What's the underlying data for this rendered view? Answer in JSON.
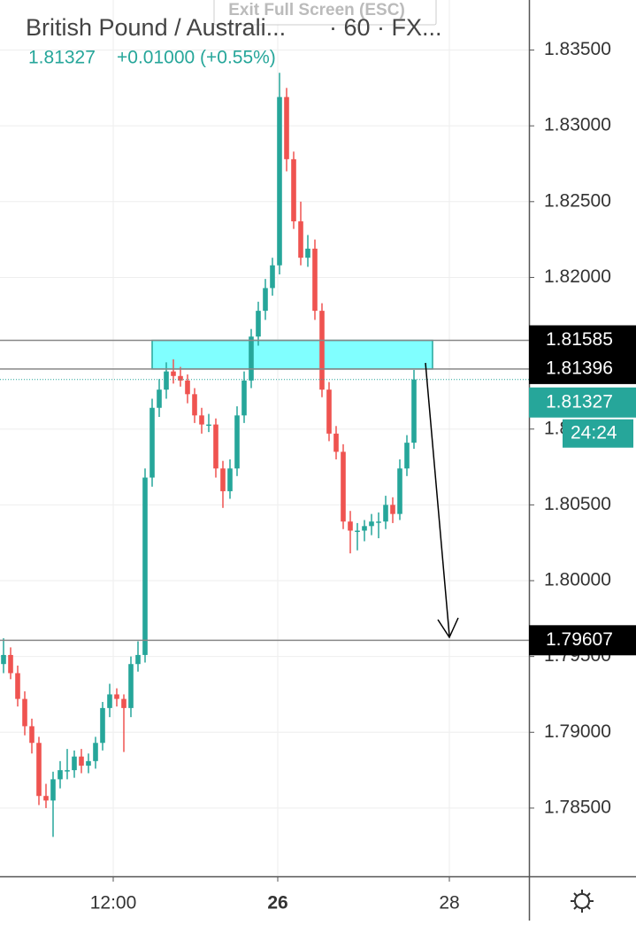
{
  "header": {
    "title": "British Pound / Australi...",
    "interval": "· 60 · FX...",
    "price": "1.81327",
    "change": "+0.01000 (+0.55%)",
    "button": "Exit Full Screen (ESC)"
  },
  "chart_data": {
    "type": "candlestick",
    "categories": [
      null,
      null,
      null,
      null,
      null,
      null,
      null,
      null,
      null,
      null,
      null,
      null,
      null,
      null,
      null,
      null,
      null,
      null,
      null,
      null,
      null,
      null,
      null,
      null,
      null,
      null,
      null,
      null,
      null,
      null,
      null,
      null,
      null,
      null,
      null,
      null,
      null,
      null,
      null,
      null,
      null,
      null,
      null,
      null,
      null,
      null,
      null,
      null,
      null,
      null,
      null,
      null,
      null,
      null,
      null,
      null,
      null,
      null,
      null
    ],
    "open": [
      1.7945,
      1.7951,
      1.7939,
      1.7922,
      1.7904,
      1.7893,
      1.7858,
      1.7855,
      1.7869,
      1.7875,
      1.7875,
      1.7884,
      1.7878,
      1.7881,
      1.7893,
      1.7916,
      1.7925,
      1.7922,
      1.7916,
      1.7945,
      1.7951,
      1.8068,
      1.8114,
      1.8126,
      1.8138,
      1.8135,
      1.8132,
      1.8123,
      1.8109,
      1.8103,
      1.8103,
      1.8074,
      1.8059,
      1.8074,
      1.8109,
      1.8132,
      1.8161,
      1.8178,
      1.8193,
      1.8208,
      1.8319,
      1.8278,
      1.8237,
      1.8213,
      1.8219,
      1.8178,
      1.8126,
      1.8097,
      1.8085,
      1.8039,
      1.8033,
      1.8033,
      1.8036,
      1.8039,
      1.8039,
      1.805,
      1.8044,
      1.8074,
      1.8091
    ],
    "high": [
      1.7962,
      1.7956,
      1.7944,
      1.7927,
      1.7909,
      1.7897,
      1.7866,
      1.7874,
      1.7881,
      1.7889,
      1.7888,
      1.7889,
      1.7886,
      1.7897,
      1.792,
      1.7932,
      1.7929,
      1.7925,
      1.795,
      1.796,
      1.8074,
      1.812,
      1.8133,
      1.8144,
      1.8146,
      1.8141,
      1.8136,
      1.8127,
      1.8114,
      1.811,
      1.8107,
      1.8079,
      1.808,
      1.8115,
      1.8138,
      1.8166,
      1.8184,
      1.8199,
      1.8213,
      1.8335,
      1.8325,
      1.8283,
      1.825,
      1.8228,
      1.8225,
      1.8183,
      1.8131,
      1.8102,
      1.809,
      1.8046,
      1.8038,
      1.804,
      1.8044,
      1.8045,
      1.8056,
      1.8055,
      1.808,
      1.8096,
      1.8139
    ],
    "low": [
      1.7939,
      1.7935,
      1.7917,
      1.7898,
      1.7886,
      1.7852,
      1.785,
      1.7831,
      1.7863,
      1.7869,
      1.787,
      1.7873,
      1.7873,
      1.7876,
      1.7888,
      1.791,
      1.7917,
      1.7887,
      1.791,
      1.794,
      1.7946,
      1.8062,
      1.8108,
      1.812,
      1.813,
      1.8128,
      1.8117,
      1.8104,
      1.8097,
      1.8098,
      1.8068,
      1.8048,
      1.8054,
      1.8069,
      1.8104,
      1.8127,
      1.8155,
      1.8172,
      1.8188,
      1.8202,
      1.827,
      1.8232,
      1.8208,
      1.8207,
      1.8172,
      1.8121,
      1.8092,
      1.808,
      1.8034,
      1.8018,
      1.802,
      1.8026,
      1.803,
      1.8028,
      1.8034,
      1.8038,
      1.804,
      1.8069,
      1.8087
    ],
    "close": [
      1.7951,
      1.7939,
      1.7922,
      1.7904,
      1.7893,
      1.7858,
      1.7855,
      1.7869,
      1.7875,
      1.7875,
      1.7884,
      1.7878,
      1.7881,
      1.7893,
      1.7916,
      1.7925,
      1.7922,
      1.7916,
      1.7945,
      1.7951,
      1.8068,
      1.8114,
      1.8126,
      1.8138,
      1.8135,
      1.8132,
      1.8123,
      1.8109,
      1.8103,
      1.8103,
      1.8074,
      1.8059,
      1.8074,
      1.8109,
      1.8132,
      1.8161,
      1.8178,
      1.8193,
      1.8208,
      1.8319,
      1.8278,
      1.8237,
      1.8213,
      1.8219,
      1.8178,
      1.8126,
      1.8097,
      1.8085,
      1.8039,
      1.8033,
      1.8033,
      1.8036,
      1.8039,
      1.8039,
      1.805,
      1.8044,
      1.8074,
      1.8091,
      1.81327
    ],
    "up_color": "#26a69a",
    "down_color": "#ef5350",
    "xlim": [
      -0.5,
      74.25
    ],
    "ylim": [
      1.7805,
      1.8383
    ],
    "xticks": [
      {
        "value": 15.5,
        "label": "12:00"
      },
      {
        "value": 38.75,
        "label": "26"
      },
      {
        "value": 63,
        "label": "28"
      }
    ],
    "yticks": [
      {
        "value": 1.835,
        "label": "1.83500"
      },
      {
        "value": 1.83,
        "label": "1.83000"
      },
      {
        "value": 1.825,
        "label": "1.82500"
      },
      {
        "value": 1.82,
        "label": "1.82000"
      },
      {
        "value": 1.81,
        "label": "1.81000"
      },
      {
        "value": 1.805,
        "label": "1.80500"
      },
      {
        "value": 1.8,
        "label": "1.80000"
      },
      {
        "value": 1.795,
        "label": "1.79500"
      },
      {
        "value": 1.79,
        "label": "1.79000"
      },
      {
        "value": 1.785,
        "label": "1.78500"
      }
    ],
    "grid": true,
    "levels": [
      1.81585,
      1.81396,
      1.79607
    ],
    "last_price": 1.81327,
    "countdown": "24:24"
  }
}
